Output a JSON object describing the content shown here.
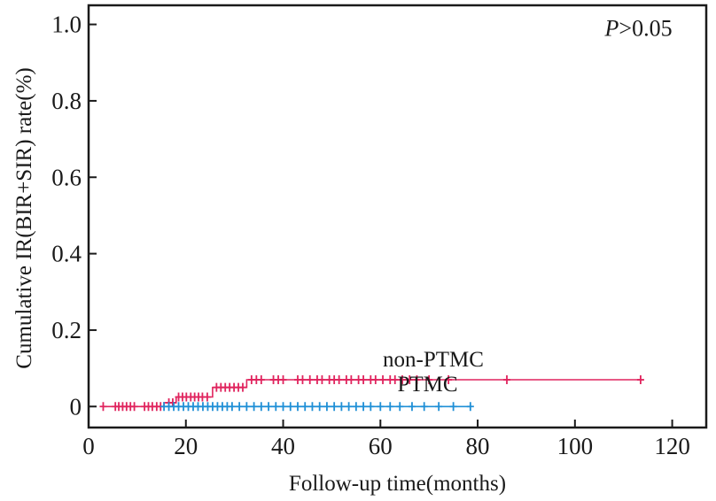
{
  "chart_data": {
    "type": "line",
    "xlabel": "Follow-up time(months)",
    "ylabel": "Cumulative IR(BIR+SIR) rate(%)",
    "xlim": [
      0,
      127
    ],
    "ylim": [
      -0.055,
      1.05
    ],
    "xticks": [
      0,
      20,
      40,
      60,
      80,
      100,
      120
    ],
    "xtick_labels": [
      "0",
      "20",
      "40",
      "60",
      "80",
      "100",
      "120"
    ],
    "yticks": [
      0,
      0.2,
      0.4,
      0.6,
      0.8,
      1.0
    ],
    "ytick_labels": [
      "0",
      "0.2",
      "0.4",
      "0.6",
      "0.8",
      "1.0"
    ],
    "annotation": {
      "prefix": "P",
      "text": ">0.05",
      "x": 120,
      "y": 0.97
    },
    "series": [
      {
        "name": "non-PTMC",
        "color": "#e0245e",
        "label_pos": {
          "x": 60.5,
          "y": 0.105
        },
        "steps": [
          [
            3,
            0.0
          ],
          [
            15.5,
            0.0
          ],
          [
            15.5,
            0.01
          ],
          [
            18,
            0.01
          ],
          [
            18,
            0.025
          ],
          [
            25.5,
            0.025
          ],
          [
            25.5,
            0.05
          ],
          [
            32.5,
            0.05
          ],
          [
            32.5,
            0.07
          ],
          [
            113.5,
            0.07
          ]
        ],
        "censored": [
          [
            3,
            0.0
          ],
          [
            5.5,
            0.0
          ],
          [
            6.2,
            0.0
          ],
          [
            7,
            0.0
          ],
          [
            7.8,
            0.0
          ],
          [
            8.6,
            0.0
          ],
          [
            9.4,
            0.0
          ],
          [
            11.5,
            0.0
          ],
          [
            12.3,
            0.0
          ],
          [
            13.1,
            0.0
          ],
          [
            14,
            0.0
          ],
          [
            14.8,
            0.0
          ],
          [
            16.5,
            0.01
          ],
          [
            17.3,
            0.01
          ],
          [
            18.5,
            0.025
          ],
          [
            19.3,
            0.025
          ],
          [
            20.1,
            0.025
          ],
          [
            21,
            0.025
          ],
          [
            21.8,
            0.025
          ],
          [
            22.6,
            0.025
          ],
          [
            23.4,
            0.025
          ],
          [
            24.4,
            0.025
          ],
          [
            26.3,
            0.05
          ],
          [
            27.2,
            0.05
          ],
          [
            28.1,
            0.05
          ],
          [
            29,
            0.05
          ],
          [
            29.9,
            0.05
          ],
          [
            30.8,
            0.05
          ],
          [
            31.7,
            0.05
          ],
          [
            33.5,
            0.07
          ],
          [
            34.5,
            0.07
          ],
          [
            35.5,
            0.07
          ],
          [
            38,
            0.07
          ],
          [
            39,
            0.07
          ],
          [
            40,
            0.07
          ],
          [
            43,
            0.07
          ],
          [
            44,
            0.07
          ],
          [
            45.5,
            0.07
          ],
          [
            47,
            0.07
          ],
          [
            48,
            0.07
          ],
          [
            49.5,
            0.07
          ],
          [
            50.5,
            0.07
          ],
          [
            51.5,
            0.07
          ],
          [
            53,
            0.07
          ],
          [
            54,
            0.07
          ],
          [
            55.5,
            0.07
          ],
          [
            56.5,
            0.07
          ],
          [
            58,
            0.07
          ],
          [
            59,
            0.07
          ],
          [
            60.5,
            0.07
          ],
          [
            62,
            0.07
          ],
          [
            63,
            0.07
          ],
          [
            64.5,
            0.07
          ],
          [
            66,
            0.07
          ],
          [
            67.5,
            0.07
          ],
          [
            70,
            0.07
          ],
          [
            74,
            0.07
          ],
          [
            86,
            0.07
          ],
          [
            113.5,
            0.07
          ]
        ]
      },
      {
        "name": "PTMC",
        "color": "#1f8fd6",
        "label_pos": {
          "x": 63.5,
          "y": 0.04
        },
        "steps": [
          [
            15.5,
            0.0
          ],
          [
            78.5,
            0.0
          ]
        ],
        "censored": [
          [
            15.5,
            0.0
          ],
          [
            16.5,
            0.0
          ],
          [
            17.5,
            0.0
          ],
          [
            18.5,
            0.0
          ],
          [
            19.5,
            0.0
          ],
          [
            20.5,
            0.0
          ],
          [
            21.5,
            0.0
          ],
          [
            22.5,
            0.0
          ],
          [
            23.5,
            0.0
          ],
          [
            24.5,
            0.0
          ],
          [
            25.5,
            0.0
          ],
          [
            26.5,
            0.0
          ],
          [
            27.5,
            0.0
          ],
          [
            28.5,
            0.0
          ],
          [
            29.5,
            0.0
          ],
          [
            31,
            0.0
          ],
          [
            32.5,
            0.0
          ],
          [
            34,
            0.0
          ],
          [
            35.5,
            0.0
          ],
          [
            37,
            0.0
          ],
          [
            38.5,
            0.0
          ],
          [
            40,
            0.0
          ],
          [
            41.5,
            0.0
          ],
          [
            43,
            0.0
          ],
          [
            44.5,
            0.0
          ],
          [
            46,
            0.0
          ],
          [
            47.5,
            0.0
          ],
          [
            49,
            0.0
          ],
          [
            50.5,
            0.0
          ],
          [
            52,
            0.0
          ],
          [
            53.5,
            0.0
          ],
          [
            55,
            0.0
          ],
          [
            56.5,
            0.0
          ],
          [
            58,
            0.0
          ],
          [
            60,
            0.0
          ],
          [
            62,
            0.0
          ],
          [
            64,
            0.0
          ],
          [
            66.5,
            0.0
          ],
          [
            69,
            0.0
          ],
          [
            72,
            0.0
          ],
          [
            75,
            0.0
          ],
          [
            78.5,
            0.0
          ]
        ]
      }
    ]
  }
}
